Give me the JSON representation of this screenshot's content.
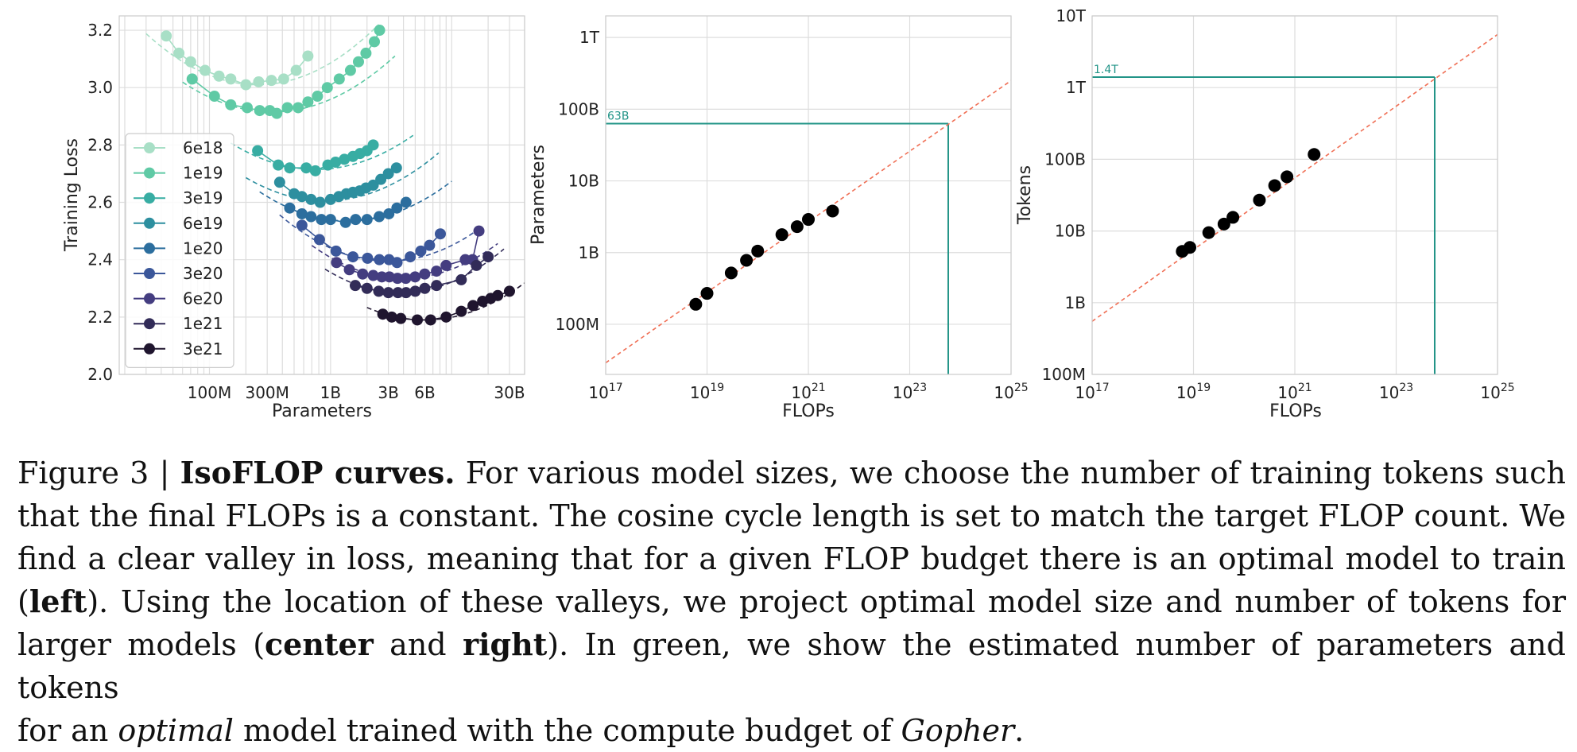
{
  "chart_data": [
    {
      "type": "line",
      "xlabel": "Parameters",
      "ylabel": "Training Loss",
      "x_scale": "log",
      "xlim": [
        18000000,
        40000000000
      ],
      "ylim": [
        2.0,
        3.25
      ],
      "xticks": [
        {
          "value": 100000000,
          "label": "100M"
        },
        {
          "value": 300000000,
          "label": "300M"
        },
        {
          "value": 1000000000,
          "label": "1B"
        },
        {
          "value": 3000000000,
          "label": "3B"
        },
        {
          "value": 6000000000,
          "label": "6B"
        },
        {
          "value": 30000000000,
          "label": "30B"
        }
      ],
      "yticks": [
        {
          "value": 2.0,
          "label": "2.0"
        },
        {
          "value": 2.2,
          "label": "2.2"
        },
        {
          "value": 2.4,
          "label": "2.4"
        },
        {
          "value": 2.6,
          "label": "2.6"
        },
        {
          "value": 2.8,
          "label": "2.8"
        },
        {
          "value": 3.0,
          "label": "3.0"
        },
        {
          "value": 3.2,
          "label": "3.2"
        }
      ],
      "grid": true,
      "legend": "left",
      "series": [
        {
          "name": "6e18",
          "color": "#a8dfc6",
          "points": [
            [
              44000000,
              3.18
            ],
            [
              56000000,
              3.12
            ],
            [
              70000000,
              3.09
            ],
            [
              92000000,
              3.06
            ],
            [
              120000000,
              3.04
            ],
            [
              150000000,
              3.03
            ],
            [
              200000000,
              3.01
            ],
            [
              255000000,
              3.02
            ],
            [
              325000000,
              3.025
            ],
            [
              410000000,
              3.03
            ],
            [
              520000000,
              3.06
            ],
            [
              650000000,
              3.11
            ]
          ],
          "fit": {
            "x_min": 30000000,
            "x_max": 2500000000,
            "x_opt": 250000000,
            "y_opt": 3.01,
            "k": 0.21
          }
        },
        {
          "name": "1e19",
          "color": "#5fcaa5",
          "points": [
            [
              72000000,
              3.03
            ],
            [
              110000000,
              2.97
            ],
            [
              150000000,
              2.94
            ],
            [
              205000000,
              2.93
            ],
            [
              260000000,
              2.92
            ],
            [
              315000000,
              2.92
            ],
            [
              360000000,
              2.91
            ],
            [
              440000000,
              2.93
            ],
            [
              540000000,
              2.93
            ],
            [
              650000000,
              2.95
            ],
            [
              780000000,
              2.97
            ],
            [
              940000000,
              3.0
            ],
            [
              1180000000,
              3.03
            ],
            [
              1460000000,
              3.06
            ],
            [
              1700000000,
              3.09
            ],
            [
              1960000000,
              3.12
            ],
            [
              2300000000,
              3.16
            ],
            [
              2540000000,
              3.2
            ]
          ],
          "fit": {
            "x_min": 60000000,
            "x_max": 3400000000,
            "x_opt": 330000000,
            "y_opt": 2.915,
            "k": 0.19
          }
        },
        {
          "name": "3e19",
          "color": "#38ada3",
          "points": [
            [
              250000000,
              2.78
            ],
            [
              370000000,
              2.73
            ],
            [
              460000000,
              2.72
            ],
            [
              630000000,
              2.72
            ],
            [
              750000000,
              2.71
            ],
            [
              950000000,
              2.73
            ],
            [
              1100000000,
              2.74
            ],
            [
              1300000000,
              2.75
            ],
            [
              1530000000,
              2.76
            ],
            [
              1750000000,
              2.77
            ],
            [
              2000000000,
              2.78
            ],
            [
              2250000000,
              2.8
            ]
          ],
          "fit": {
            "x_min": 150000000,
            "x_max": 4800000000,
            "x_opt": 760000000,
            "y_opt": 2.715,
            "k": 0.185
          }
        },
        {
          "name": "6e19",
          "color": "#2d8f9f",
          "points": [
            [
              380000000,
              2.67
            ],
            [
              500000000,
              2.63
            ],
            [
              580000000,
              2.62
            ],
            [
              690000000,
              2.61
            ],
            [
              820000000,
              2.6
            ],
            [
              1000000000,
              2.61
            ],
            [
              1170000000,
              2.62
            ],
            [
              1350000000,
              2.63
            ],
            [
              1530000000,
              2.635
            ],
            [
              1740000000,
              2.64
            ],
            [
              1960000000,
              2.65
            ],
            [
              2250000000,
              2.66
            ],
            [
              2600000000,
              2.68
            ],
            [
              3000000000,
              2.7
            ],
            [
              3500000000,
              2.72
            ]
          ],
          "fit": {
            "x_min": 200000000,
            "x_max": 7800000000,
            "x_opt": 900000000,
            "y_opt": 2.605,
            "k": 0.19
          }
        },
        {
          "name": "1e20",
          "color": "#2c6e9e",
          "points": [
            [
              460000000,
              2.58
            ],
            [
              580000000,
              2.56
            ],
            [
              690000000,
              2.55
            ],
            [
              840000000,
              2.54
            ],
            [
              1000000000,
              2.54
            ],
            [
              1330000000,
              2.53
            ],
            [
              1610000000,
              2.54
            ],
            [
              2000000000,
              2.54
            ],
            [
              2520000000,
              2.55
            ],
            [
              3030000000,
              2.56
            ],
            [
              3530000000,
              2.58
            ],
            [
              4200000000,
              2.6
            ]
          ],
          "fit": {
            "x_min": 260000000,
            "x_max": 10000000000,
            "x_opt": 1400000000,
            "y_opt": 2.535,
            "k": 0.19
          }
        },
        {
          "name": "3e20",
          "color": "#3b579a",
          "points": [
            [
              580000000,
              2.52
            ],
            [
              810000000,
              2.47
            ],
            [
              1110000000,
              2.43
            ],
            [
              1530000000,
              2.41
            ],
            [
              2020000000,
              2.405
            ],
            [
              2530000000,
              2.4
            ],
            [
              3040000000,
              2.4
            ],
            [
              3540000000,
              2.39
            ],
            [
              4550000000,
              2.41
            ],
            [
              5560000000,
              2.43
            ],
            [
              6560000000,
              2.45
            ],
            [
              8060000000,
              2.49
            ]
          ],
          "fit": {
            "x_min": 380000000,
            "x_max": 16000000000,
            "x_opt": 3000000000,
            "y_opt": 2.395,
            "k": 0.2
          }
        },
        {
          "name": "6e20",
          "color": "#443d80",
          "points": [
            [
              1120000000,
              2.39
            ],
            [
              1430000000,
              2.365
            ],
            [
              1840000000,
              2.35
            ],
            [
              2250000000,
              2.345
            ],
            [
              2650000000,
              2.34
            ],
            [
              3060000000,
              2.34
            ],
            [
              3570000000,
              2.335
            ],
            [
              4180000000,
              2.335
            ],
            [
              4990000000,
              2.34
            ],
            [
              5990000000,
              2.35
            ],
            [
              7490000000,
              2.36
            ],
            [
              8990000000,
              2.38
            ],
            [
              12950000000,
              2.4
            ],
            [
              14880000000,
              2.4
            ],
            [
              16790000000,
              2.5
            ]
          ],
          "fit": {
            "x_min": 700000000,
            "x_max": 24000000000,
            "x_opt": 4000000000,
            "y_opt": 2.335,
            "k": 0.2
          }
        },
        {
          "name": "1e21",
          "color": "#322c58",
          "points": [
            [
              1600000000,
              2.31
            ],
            [
              2000000000,
              2.3
            ],
            [
              2500000000,
              2.29
            ],
            [
              3000000000,
              2.285
            ],
            [
              3600000000,
              2.285
            ],
            [
              4200000000,
              2.285
            ],
            [
              5000000000,
              2.29
            ],
            [
              6000000000,
              2.3
            ],
            [
              7500000000,
              2.31
            ],
            [
              12000000000,
              2.33
            ],
            [
              16000000000,
              2.38
            ],
            [
              20000000000,
              2.41
            ]
          ],
          "fit": {
            "x_min": 900000000,
            "x_max": 27000000000,
            "x_opt": 3800000000,
            "y_opt": 2.285,
            "k": 0.21
          }
        },
        {
          "name": "3e21",
          "color": "#1f152e",
          "points": [
            [
              2700000000,
              2.21
            ],
            [
              3200000000,
              2.2
            ],
            [
              3800000000,
              2.195
            ],
            [
              5200000000,
              2.19
            ],
            [
              6700000000,
              2.19
            ],
            [
              9000000000,
              2.2
            ],
            [
              12000000000,
              2.22
            ],
            [
              15000000000,
              2.24
            ],
            [
              18000000000,
              2.255
            ],
            [
              21000000000,
              2.265
            ],
            [
              24000000000,
              2.275
            ],
            [
              30000000000,
              2.29
            ]
          ],
          "fit": {
            "x_min": 2000000000,
            "x_max": 40000000000,
            "x_opt": 6000000000,
            "y_opt": 2.19,
            "k": 0.19
          }
        }
      ]
    },
    {
      "type": "scatter",
      "xlabel": "FLOPs",
      "ylabel": "Parameters",
      "x_scale": "log",
      "y_scale": "log",
      "xlim": [
        1e+17,
        1e+25
      ],
      "ylim": [
        20000000,
        2000000000000
      ],
      "xticks": [
        {
          "value": 1e+17,
          "base": "10",
          "exp": "17"
        },
        {
          "value": 1e+19,
          "base": "10",
          "exp": "19"
        },
        {
          "value": 1e+21,
          "base": "10",
          "exp": "21"
        },
        {
          "value": 1e+23,
          "base": "10",
          "exp": "23"
        },
        {
          "value": 1e+25,
          "base": "10",
          "exp": "25"
        }
      ],
      "yticks": [
        {
          "value": 100000000,
          "label": "100M"
        },
        {
          "value": 1000000000,
          "label": "1B"
        },
        {
          "value": 10000000000,
          "label": "10B"
        },
        {
          "value": 100000000000,
          "label": "100B"
        },
        {
          "value": 1000000000000,
          "label": "1T"
        }
      ],
      "grid": true,
      "points": [
        [
          6e+18,
          190000000
        ],
        [
          1e+19,
          270000000
        ],
        [
          3e+19,
          520000000
        ],
        [
          6e+19,
          780000000
        ],
        [
          1e+20,
          1050000000
        ],
        [
          3e+20,
          1780000000
        ],
        [
          6e+20,
          2300000000
        ],
        [
          1e+21,
          2900000000
        ],
        [
          3e+21,
          3800000000
        ]
      ],
      "point_color": "#000000",
      "fit_line": {
        "x": [
          1e+17,
          1e+25
        ],
        "y": [
          29000000,
          250000000000
        ],
        "color": "#f07056"
      },
      "projection": {
        "flops": 5.76e+23,
        "value": 63000000000,
        "label": "63B",
        "color": "#229487"
      }
    },
    {
      "type": "scatter",
      "xlabel": "FLOPs",
      "ylabel": "Tokens",
      "x_scale": "log",
      "y_scale": "log",
      "xlim": [
        1e+17,
        1e+25
      ],
      "ylim": [
        100000000,
        10000000000000
      ],
      "xticks": [
        {
          "value": 1e+17,
          "base": "10",
          "exp": "17"
        },
        {
          "value": 1e+19,
          "base": "10",
          "exp": "19"
        },
        {
          "value": 1e+21,
          "base": "10",
          "exp": "21"
        },
        {
          "value": 1e+23,
          "base": "10",
          "exp": "23"
        },
        {
          "value": 1e+25,
          "base": "10",
          "exp": "25"
        }
      ],
      "yticks": [
        {
          "value": 100000000,
          "label": "100M"
        },
        {
          "value": 1000000000,
          "label": "1B"
        },
        {
          "value": 10000000000,
          "label": "10B"
        },
        {
          "value": 100000000000,
          "label": "100B"
        },
        {
          "value": 1000000000000,
          "label": "1T"
        },
        {
          "value": 10000000000000,
          "label": "10T"
        }
      ],
      "grid": true,
      "points": [
        [
          6e+18,
          5200000000
        ],
        [
          8.5e+18,
          5900000000
        ],
        [
          2e+19,
          9500000000
        ],
        [
          4e+19,
          12500000000
        ],
        [
          6e+19,
          15500000000
        ],
        [
          2e+20,
          27000000000
        ],
        [
          4e+20,
          43000000000
        ],
        [
          7e+20,
          57000000000
        ],
        [
          2.4e+21,
          117000000000
        ]
      ],
      "point_color": "#000000",
      "fit_line": {
        "x": [
          1e+17,
          1e+25
        ],
        "y": [
          550000000,
          5500000000000
        ],
        "color": "#f07056"
      },
      "projection": {
        "flops": 5.76e+23,
        "value": 1400000000000,
        "label": "1.4T",
        "color": "#229487"
      }
    }
  ],
  "caption": {
    "prefix": "Figure 3 | ",
    "title": "IsoFLOP curves.",
    "l1": " For various model sizes, we choose the number of training tokens such",
    "l2": "that the final FLOPs is a constant. The cosine cycle length is set to match the target FLOP count. We",
    "l3": "find a clear valley in loss, meaning that for a given FLOP budget there is an optimal model to train",
    "l4a": "(",
    "left_word": "left",
    "l4b": "). Using the location of these valleys, we project optimal model size and number of tokens for",
    "l5a": "larger models (",
    "center_word": "center",
    "l5b": " and ",
    "right_word": "right",
    "l5c": "). In green, we show the estimated number of parameters and tokens",
    "l6a": "for an ",
    "optimal_word": "optimal",
    "l6b": " model trained with the compute budget of ",
    "gopher_word": "Gopher",
    "l6c": "."
  }
}
